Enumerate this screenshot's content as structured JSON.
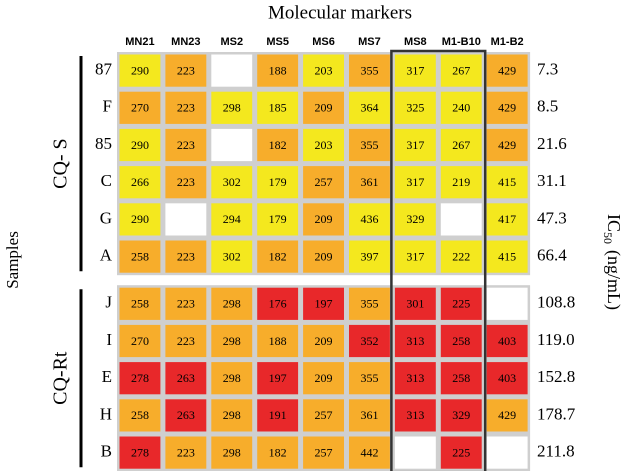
{
  "header": {
    "title": "Molecular markers"
  },
  "samples_label": "Samples",
  "ic50_label": {
    "main": "IC",
    "sub": "50",
    "unit": "(ng/mL)"
  },
  "columns": [
    "MN21",
    "MN23",
    "MS2",
    "MS5",
    "MS6",
    "MS7",
    "MS8",
    "M1-B10",
    "M1-B2"
  ],
  "groups": [
    {
      "label": "CQ- S",
      "rows": [
        {
          "label": "87",
          "ic50": "7.3",
          "cells": [
            "290",
            "223",
            null,
            "188",
            "203",
            "355",
            "317",
            "267",
            "429"
          ],
          "colors": [
            "#f4e81e",
            "#f7ad2b",
            "#ffffff",
            "#f7ad2b",
            "#f4e81e",
            "#f7ad2b",
            "#f4e81e",
            "#f4e81e",
            "#f7ad2b"
          ]
        },
        {
          "label": "F",
          "ic50": "8.5",
          "cells": [
            "270",
            "223",
            "298",
            "185",
            "209",
            "364",
            "325",
            "240",
            "429"
          ],
          "colors": [
            "#f7ad2b",
            "#f7ad2b",
            "#f4e81e",
            "#f4e81e",
            "#f7ad2b",
            "#f4e81e",
            "#f4e81e",
            "#f4e81e",
            "#f7ad2b"
          ]
        },
        {
          "label": "85",
          "ic50": "21.6",
          "cells": [
            "290",
            "223",
            null,
            "182",
            "203",
            "355",
            "317",
            "267",
            "429"
          ],
          "colors": [
            "#f4e81e",
            "#f7ad2b",
            "#ffffff",
            "#f7ad2b",
            "#f4e81e",
            "#f7ad2b",
            "#f4e81e",
            "#f4e81e",
            "#f7ad2b"
          ]
        },
        {
          "label": "C",
          "ic50": "31.1",
          "cells": [
            "266",
            "223",
            "302",
            "179",
            "257",
            "361",
            "317",
            "219",
            "415"
          ],
          "colors": [
            "#f4e81e",
            "#f7ad2b",
            "#f4e81e",
            "#f4e81e",
            "#f7ad2b",
            "#f7ad2b",
            "#f4e81e",
            "#f4e81e",
            "#f4e81e"
          ]
        },
        {
          "label": "G",
          "ic50": "47.3",
          "cells": [
            "290",
            null,
            "294",
            "179",
            "209",
            "436",
            "329",
            null,
            "417"
          ],
          "colors": [
            "#f4e81e",
            "#ffffff",
            "#f4e81e",
            "#f4e81e",
            "#f7ad2b",
            "#f4e81e",
            "#f4e81e",
            "#ffffff",
            "#f4e81e"
          ]
        },
        {
          "label": "A",
          "ic50": "66.4",
          "cells": [
            "258",
            "223",
            "302",
            "182",
            "209",
            "397",
            "317",
            "222",
            "415"
          ],
          "colors": [
            "#f7ad2b",
            "#f7ad2b",
            "#f4e81e",
            "#f7ad2b",
            "#f7ad2b",
            "#f4e81e",
            "#f4e81e",
            "#f4e81e",
            "#f4e81e"
          ]
        }
      ]
    },
    {
      "label": "CQ-Rt",
      "rows": [
        {
          "label": "J",
          "ic50": "108.8",
          "cells": [
            "258",
            "223",
            "298",
            "176",
            "197",
            "355",
            "301",
            "225",
            null
          ],
          "colors": [
            "#f7ad2b",
            "#f7ad2b",
            "#f7ad2b",
            "#e8282a",
            "#e8282a",
            "#f7ad2b",
            "#e8282a",
            "#e8282a",
            "#ffffff"
          ]
        },
        {
          "label": "I",
          "ic50": "119.0",
          "cells": [
            "270",
            "223",
            "298",
            "188",
            "209",
            "352",
            "313",
            "258",
            "403"
          ],
          "colors": [
            "#f7ad2b",
            "#f7ad2b",
            "#f7ad2b",
            "#f7ad2b",
            "#f7ad2b",
            "#e8282a",
            "#e8282a",
            "#e8282a",
            "#e8282a"
          ]
        },
        {
          "label": "E",
          "ic50": "152.8",
          "cells": [
            "278",
            "263",
            "298",
            "197",
            "209",
            "355",
            "313",
            "258",
            "403"
          ],
          "colors": [
            "#e8282a",
            "#e8282a",
            "#f7ad2b",
            "#e8282a",
            "#f7ad2b",
            "#f7ad2b",
            "#e8282a",
            "#e8282a",
            "#e8282a"
          ]
        },
        {
          "label": "H",
          "ic50": "178.7",
          "cells": [
            "258",
            "263",
            "298",
            "191",
            "257",
            "361",
            "313",
            "329",
            "429"
          ],
          "colors": [
            "#f7ad2b",
            "#e8282a",
            "#f7ad2b",
            "#e8282a",
            "#f7ad2b",
            "#f7ad2b",
            "#e8282a",
            "#e8282a",
            "#f7ad2b"
          ]
        },
        {
          "label": "B",
          "ic50": "211.8",
          "cells": [
            "278",
            "223",
            "298",
            "182",
            "257",
            "442",
            null,
            "225",
            null
          ],
          "colors": [
            "#e8282a",
            "#f7ad2b",
            "#f7ad2b",
            "#f7ad2b",
            "#f7ad2b",
            "#f7ad2b",
            "#ffffff",
            "#e8282a",
            "#ffffff"
          ]
        }
      ]
    }
  ]
}
